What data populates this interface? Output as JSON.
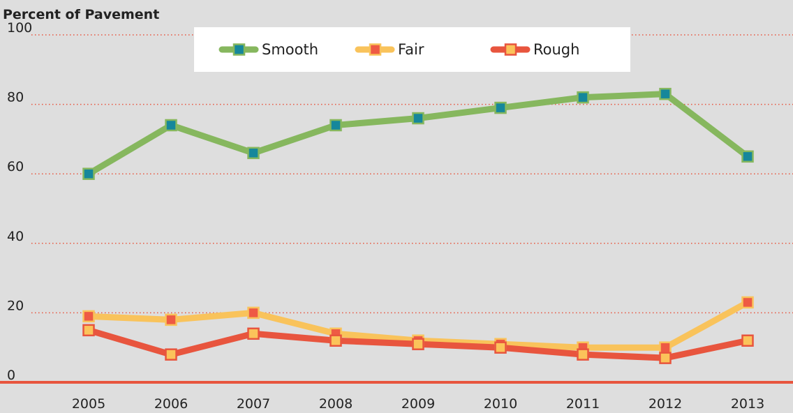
{
  "chart_data": {
    "type": "line",
    "y_label": "Percent of Pavement",
    "categories": [
      "2005",
      "2006",
      "2007",
      "2008",
      "2009",
      "2010",
      "2011",
      "2012",
      "2013"
    ],
    "series": [
      {
        "name": "Smooth",
        "color": "#86b75e",
        "marker_color": "#16879b",
        "values": [
          60,
          74,
          66,
          74,
          76,
          79,
          82,
          83,
          65
        ]
      },
      {
        "name": "Fair",
        "color": "#f9c35b",
        "marker_color": "#ee5a44",
        "values": [
          19,
          18,
          20,
          14,
          12,
          11,
          10,
          10,
          23
        ]
      },
      {
        "name": "Rough",
        "color": "#e8553e",
        "marker_color": "#fbc35a",
        "values": [
          15,
          8,
          14,
          12,
          11,
          10,
          8,
          7,
          12
        ]
      }
    ],
    "ylim": [
      0,
      100
    ],
    "yticks": [
      0,
      20,
      40,
      60,
      80,
      100
    ],
    "grid": true,
    "legend": "top"
  }
}
